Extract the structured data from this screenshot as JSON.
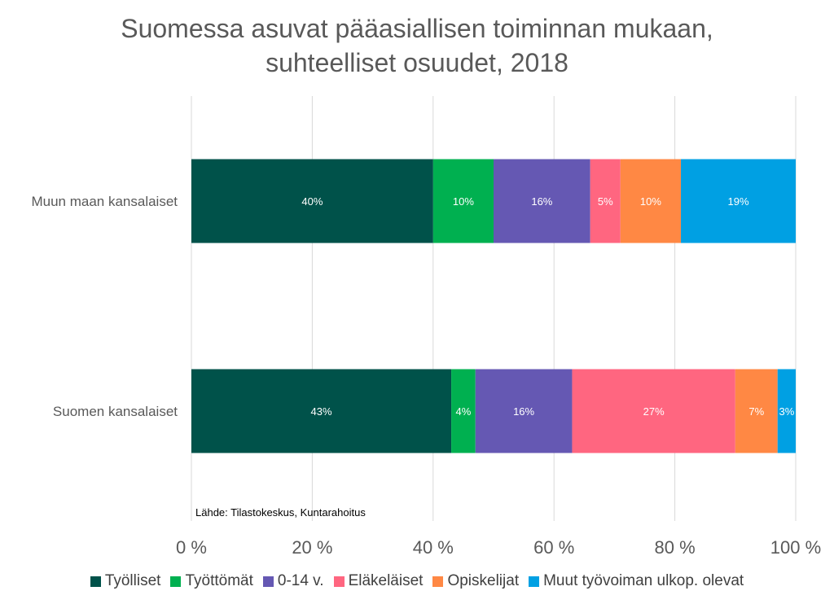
{
  "chart_data": {
    "type": "bar",
    "orientation": "horizontal",
    "stacked": true,
    "title_lines": [
      "Suomessa asuvat pääasiallisen toiminnan mukaan,",
      "suhteelliset osuudet, 2018"
    ],
    "categories": [
      "Muun maan kansalaiset",
      "Suomen kansalaiset"
    ],
    "series": [
      {
        "name": "Työlliset",
        "color": "#00524A",
        "values": [
          40,
          43
        ],
        "labels": [
          "40%",
          "43%"
        ]
      },
      {
        "name": "Työttömät",
        "color": "#00B050",
        "values": [
          10,
          4
        ],
        "labels": [
          "10%",
          "4%"
        ]
      },
      {
        "name": "0-14 v.",
        "color": "#6558B3",
        "values": [
          16,
          16
        ],
        "labels": [
          "16%",
          "16%"
        ]
      },
      {
        "name": "Eläkeläiset",
        "color": "#FF6680",
        "values": [
          5,
          27
        ],
        "labels": [
          "5%",
          "27%"
        ]
      },
      {
        "name": "Opiskelijat",
        "color": "#FF8844",
        "values": [
          10,
          7
        ],
        "labels": [
          "10%",
          "7%"
        ]
      },
      {
        "name": "Muut työvoiman ulkop. olevat",
        "color": "#00A0E3",
        "values": [
          19,
          3
        ],
        "labels": [
          "19%",
          "3%"
        ]
      }
    ],
    "xlim": [
      0,
      100
    ],
    "xticks": [
      0,
      20,
      40,
      60,
      80,
      100
    ],
    "xtick_labels": [
      "0 %",
      "20 %",
      "40 %",
      "60 %",
      "80 %",
      "100 %"
    ],
    "grid": true,
    "legend_position": "bottom",
    "source_note": "Lähde: Tilastokeskus, Kuntarahoitus"
  }
}
